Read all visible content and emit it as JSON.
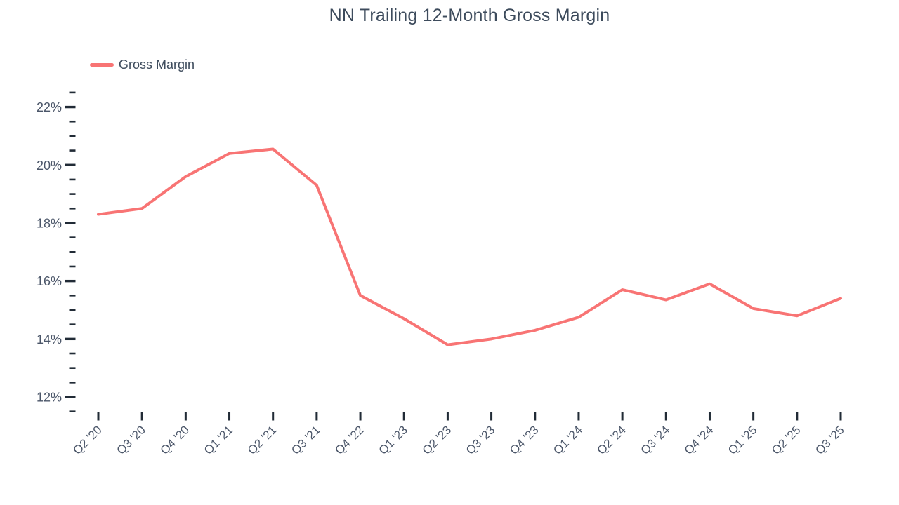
{
  "colors": {
    "line": "#f87474",
    "title_text": "#3d4b5c",
    "axis_label_text": "#4b5669",
    "tick_mark": "#212b36",
    "background": "#ffffff"
  },
  "chart_data": {
    "type": "line",
    "title": "NN Trailing 12-Month Gross Margin",
    "categories": [
      "Q2 '20",
      "Q3 '20",
      "Q4 '20",
      "Q1 '21",
      "Q2 '21",
      "Q3 '21",
      "Q4 '22",
      "Q1 '23",
      "Q2 '23",
      "Q3 '23",
      "Q4 '23",
      "Q1 '24",
      "Q2 '24",
      "Q3 '24",
      "Q4 '24",
      "Q1 '25",
      "Q2 '25",
      "Q3 '25"
    ],
    "series": [
      {
        "name": "Gross Margin",
        "values": [
          18.3,
          18.5,
          19.6,
          20.4,
          20.55,
          19.3,
          15.5,
          14.7,
          13.8,
          14.0,
          14.3,
          14.75,
          15.7,
          15.35,
          15.9,
          15.05,
          14.8,
          15.4
        ]
      }
    ],
    "unit": "%",
    "xlabel": "",
    "ylabel": "",
    "y_axis": {
      "min": 11.5,
      "max": 22.5,
      "major_tick_step": 2,
      "minor_tick_step": 0.5,
      "major_tick_values": [
        22,
        20,
        18,
        16,
        14,
        12
      ],
      "labels": [
        "22%",
        "20%",
        "18%",
        "16%",
        "14%",
        "12%"
      ]
    },
    "legend_position": "top-left",
    "grid": false,
    "x_tick_rotation_deg": 45
  }
}
